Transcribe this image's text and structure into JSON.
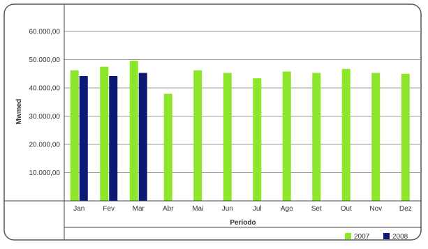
{
  "chart_data": {
    "type": "bar",
    "title": "",
    "xlabel": "Periodo",
    "ylabel": "Mwmed",
    "ylim": [
      0,
      60000
    ],
    "yticks": [
      "10.000,00",
      "20.000,00",
      "30.000,00",
      "40.000,00",
      "50.000,00",
      "60.000,00"
    ],
    "ytick_values": [
      10000,
      20000,
      30000,
      40000,
      50000,
      60000
    ],
    "grid": true,
    "legend_position": "bottom-right",
    "categories": [
      "Jan",
      "Fev",
      "Mar",
      "Abr",
      "Mai",
      "Jun",
      "Jul",
      "Ago",
      "Set",
      "Out",
      "Nov",
      "Dez"
    ],
    "series": [
      {
        "name": "2007",
        "color": "#8ee62a",
        "values": [
          46200,
          47500,
          49600,
          37900,
          46200,
          45300,
          43400,
          45800,
          45300,
          46700,
          45300,
          45000
        ]
      },
      {
        "name": "2008",
        "color": "#0d1a75",
        "values": [
          44200,
          44200,
          45300,
          null,
          null,
          null,
          null,
          null,
          null,
          null,
          null,
          null
        ]
      }
    ]
  }
}
